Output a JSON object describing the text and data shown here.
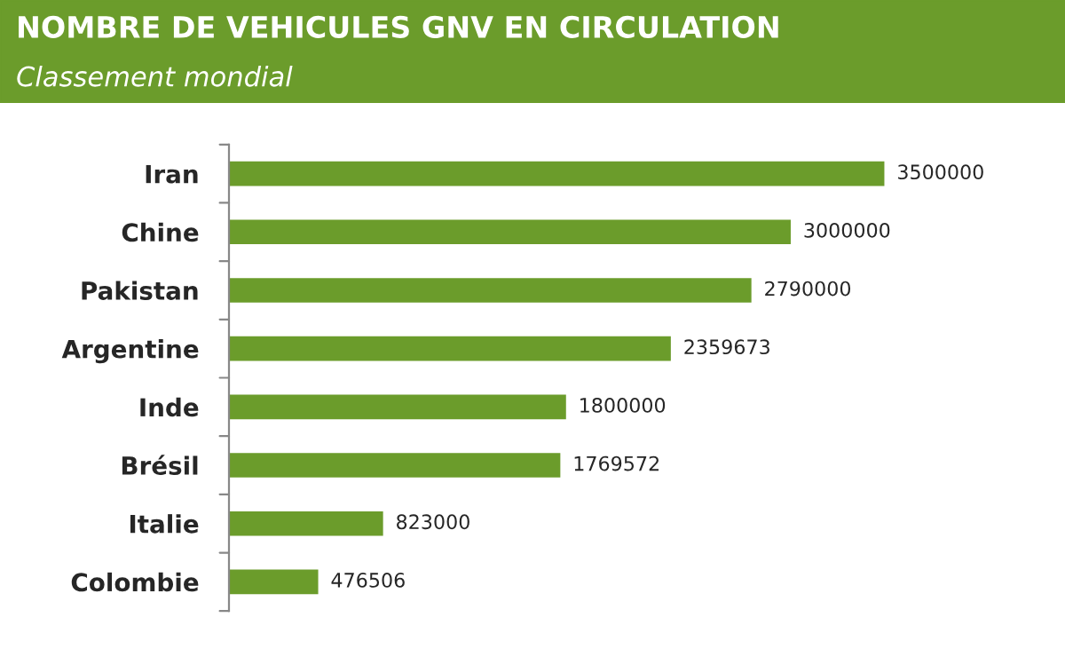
{
  "chart_data": {
    "type": "bar",
    "orientation": "horizontal",
    "title": "NOMBRE DE VEHICULES GNV EN CIRCULATION",
    "subtitle": "Classement mondial",
    "categories": [
      "Iran",
      "Chine",
      "Pakistan",
      "Argentine",
      "Inde",
      "Brésil",
      "Italie",
      "Colombie"
    ],
    "values": [
      3500000,
      3000000,
      2790000,
      2359673,
      1800000,
      1769572,
      823000,
      476506
    ],
    "color": "#6b9c2b",
    "tick_labels": "y",
    "data_labels": true,
    "grid": false,
    "legend": false
  }
}
